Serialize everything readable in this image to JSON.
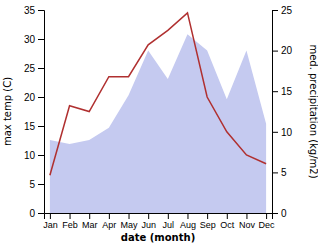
{
  "chart_data": {
    "type": "line",
    "categories": [
      "Jan",
      "Feb",
      "Mar",
      "Apr",
      "May",
      "Jun",
      "Jul",
      "Aug",
      "Sep",
      "Oct",
      "Nov",
      "Dec"
    ],
    "series": [
      {
        "type": "area",
        "axis": "y2",
        "color": "#c5caf0",
        "values": [
          9.0,
          8.5,
          9.0,
          10.5,
          14.5,
          20.0,
          16.5,
          22.0,
          20.0,
          14.0,
          20.0,
          11.0
        ]
      },
      {
        "type": "line",
        "axis": "y",
        "color": "#b03030",
        "values": [
          6.5,
          18.5,
          17.5,
          23.5,
          23.5,
          29.0,
          31.5,
          34.5,
          20.0,
          14.0,
          10.0,
          8.5
        ]
      }
    ],
    "x_label": "date (month)",
    "y_label": "max temp (C)",
    "y2_label": "med. precipitation (kg/m2)",
    "ylim": [
      0,
      35
    ],
    "yticks": [
      0,
      5,
      10,
      15,
      20,
      25,
      30,
      35
    ],
    "y2lim": [
      0,
      25
    ],
    "y2ticks": [
      0,
      5,
      10,
      15,
      20,
      25
    ],
    "grid": false
  }
}
